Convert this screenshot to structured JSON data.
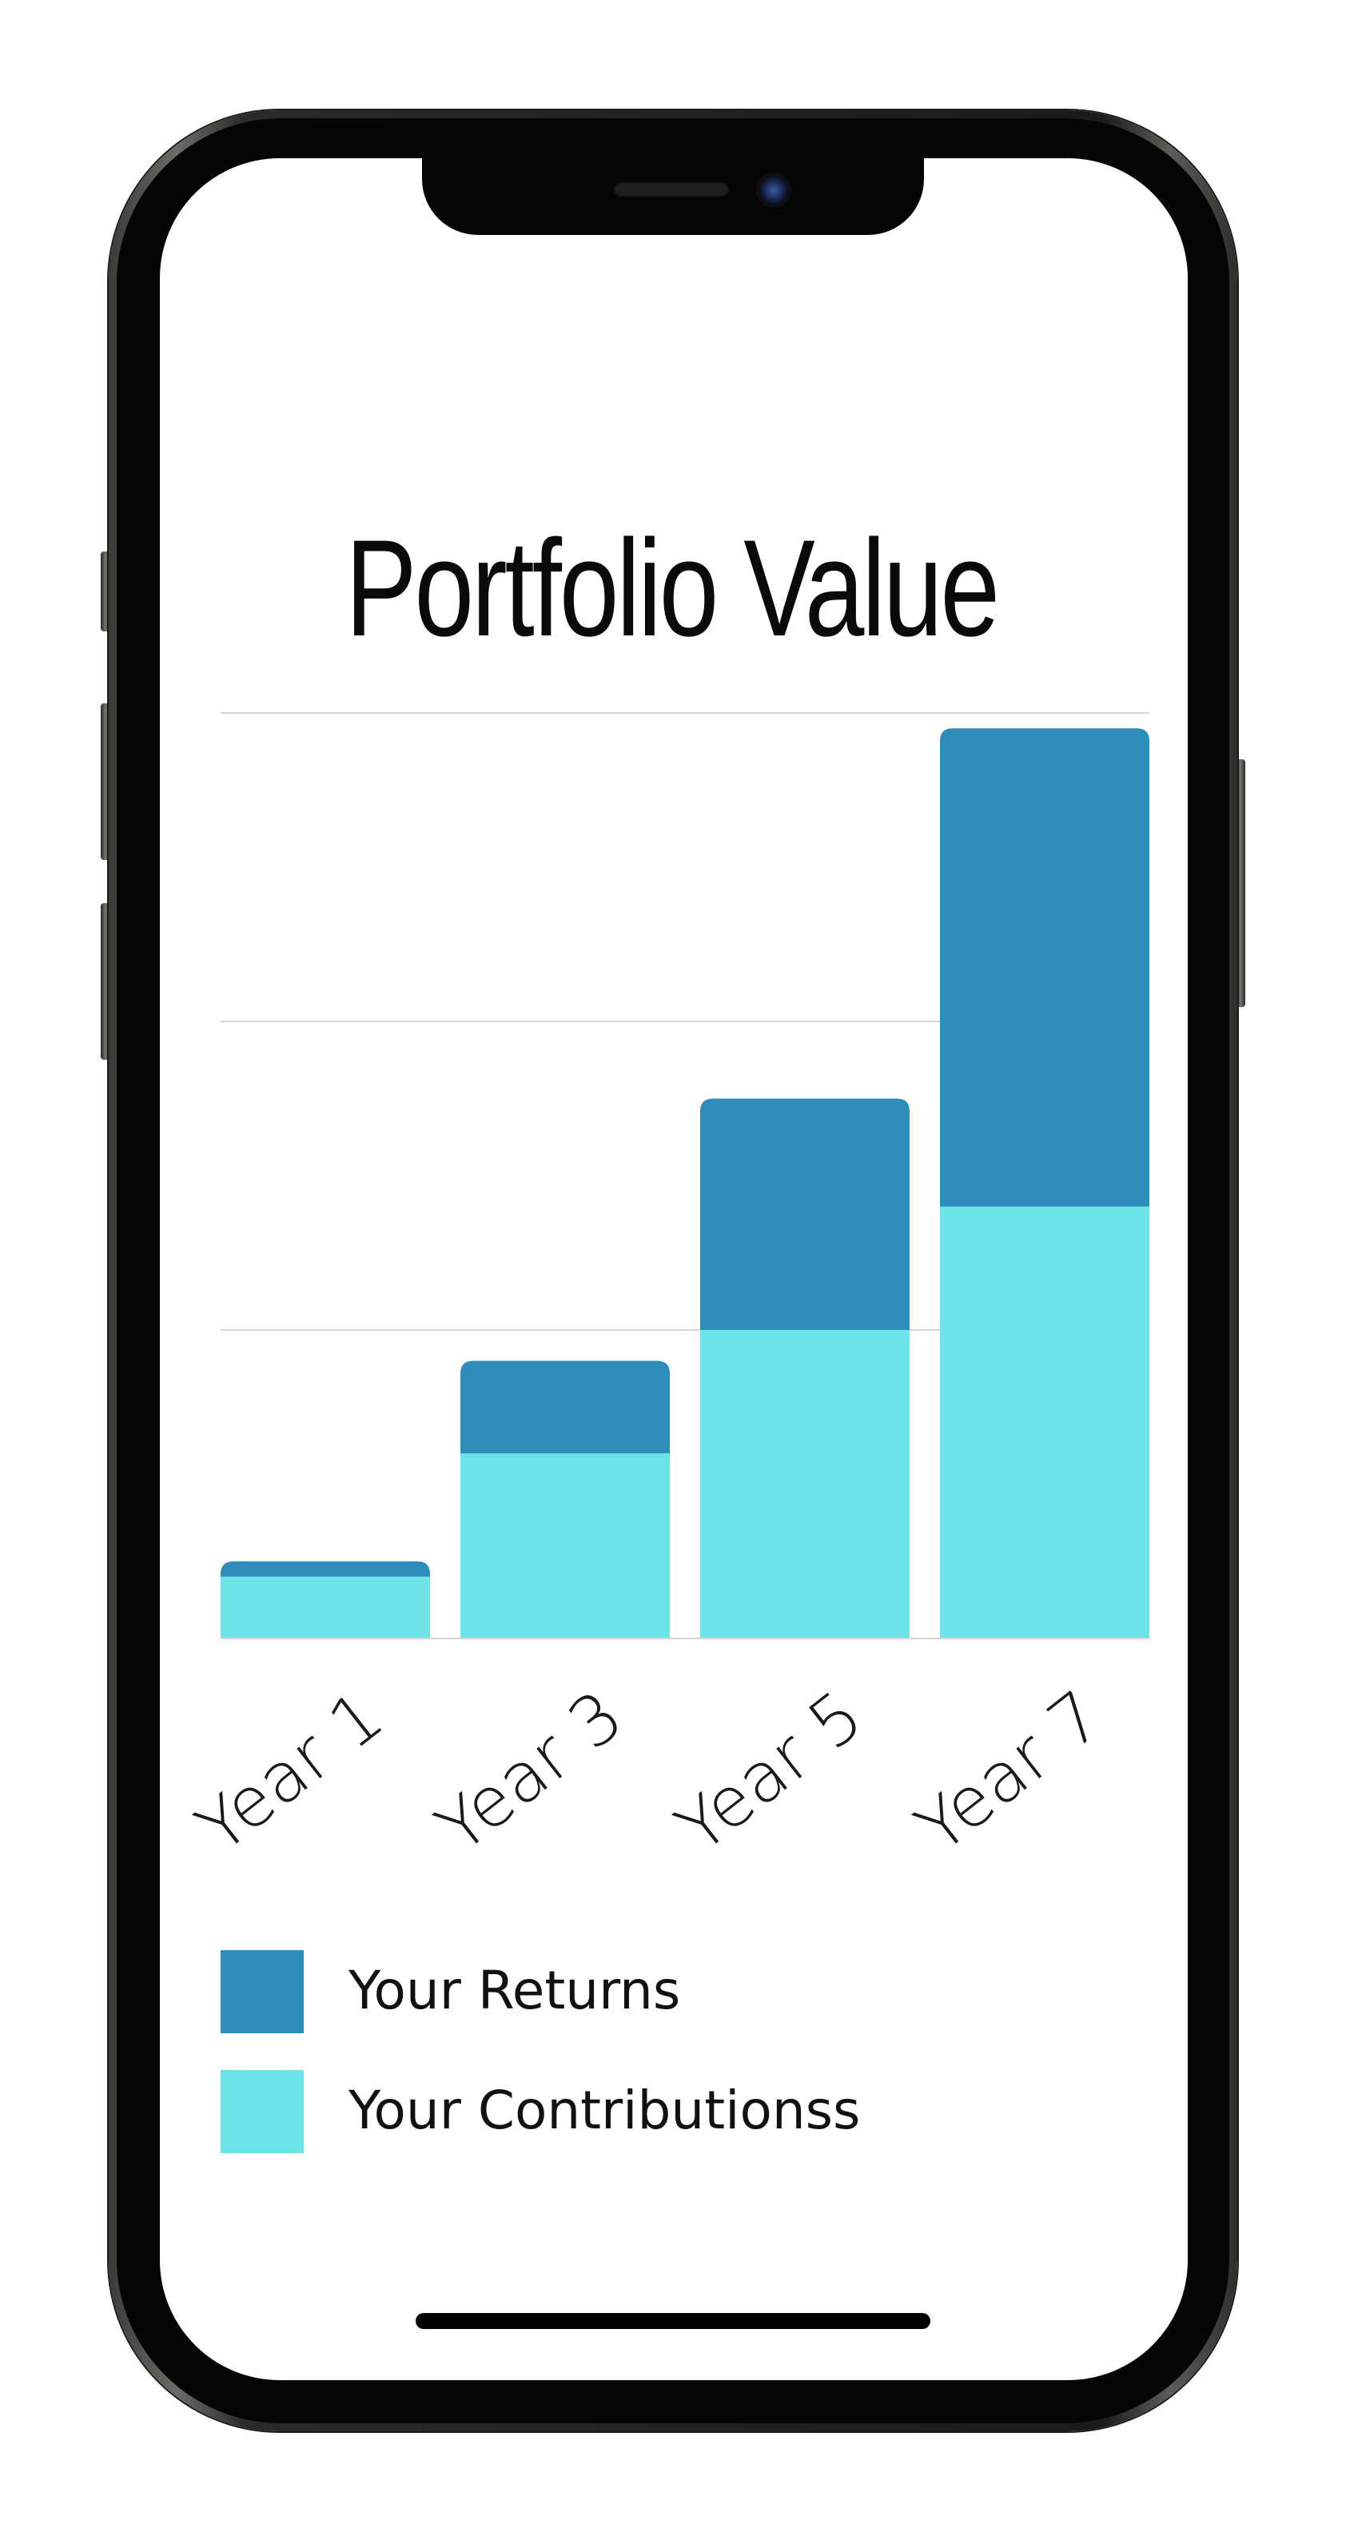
{
  "colors": {
    "returns": "#2E8CBB",
    "contributions": "#6BE3E7",
    "gridline": "#d6d6d6",
    "text": "#111111"
  },
  "chart_data": {
    "type": "bar",
    "stacked": true,
    "title": "Portfolio Value",
    "xlabel": "",
    "ylabel": "",
    "ylim": [
      0,
      3
    ],
    "grid": true,
    "legend_position": "bottom",
    "categories": [
      "Year 1",
      "Year 3",
      "Year 5",
      "Year 7"
    ],
    "series": [
      {
        "name": "Your Contributionss",
        "color": "#6BE3E7",
        "values": [
          0.2,
          0.6,
          1.0,
          1.4
        ]
      },
      {
        "name": "Your Returns",
        "color": "#2E8CBB",
        "values": [
          0.05,
          0.3,
          0.75,
          1.55
        ]
      }
    ]
  },
  "legend": {
    "items": [
      {
        "label": "Your Returns",
        "color": "#2E8CBB"
      },
      {
        "label": "Your Contributionss",
        "color": "#6BE3E7"
      }
    ]
  }
}
